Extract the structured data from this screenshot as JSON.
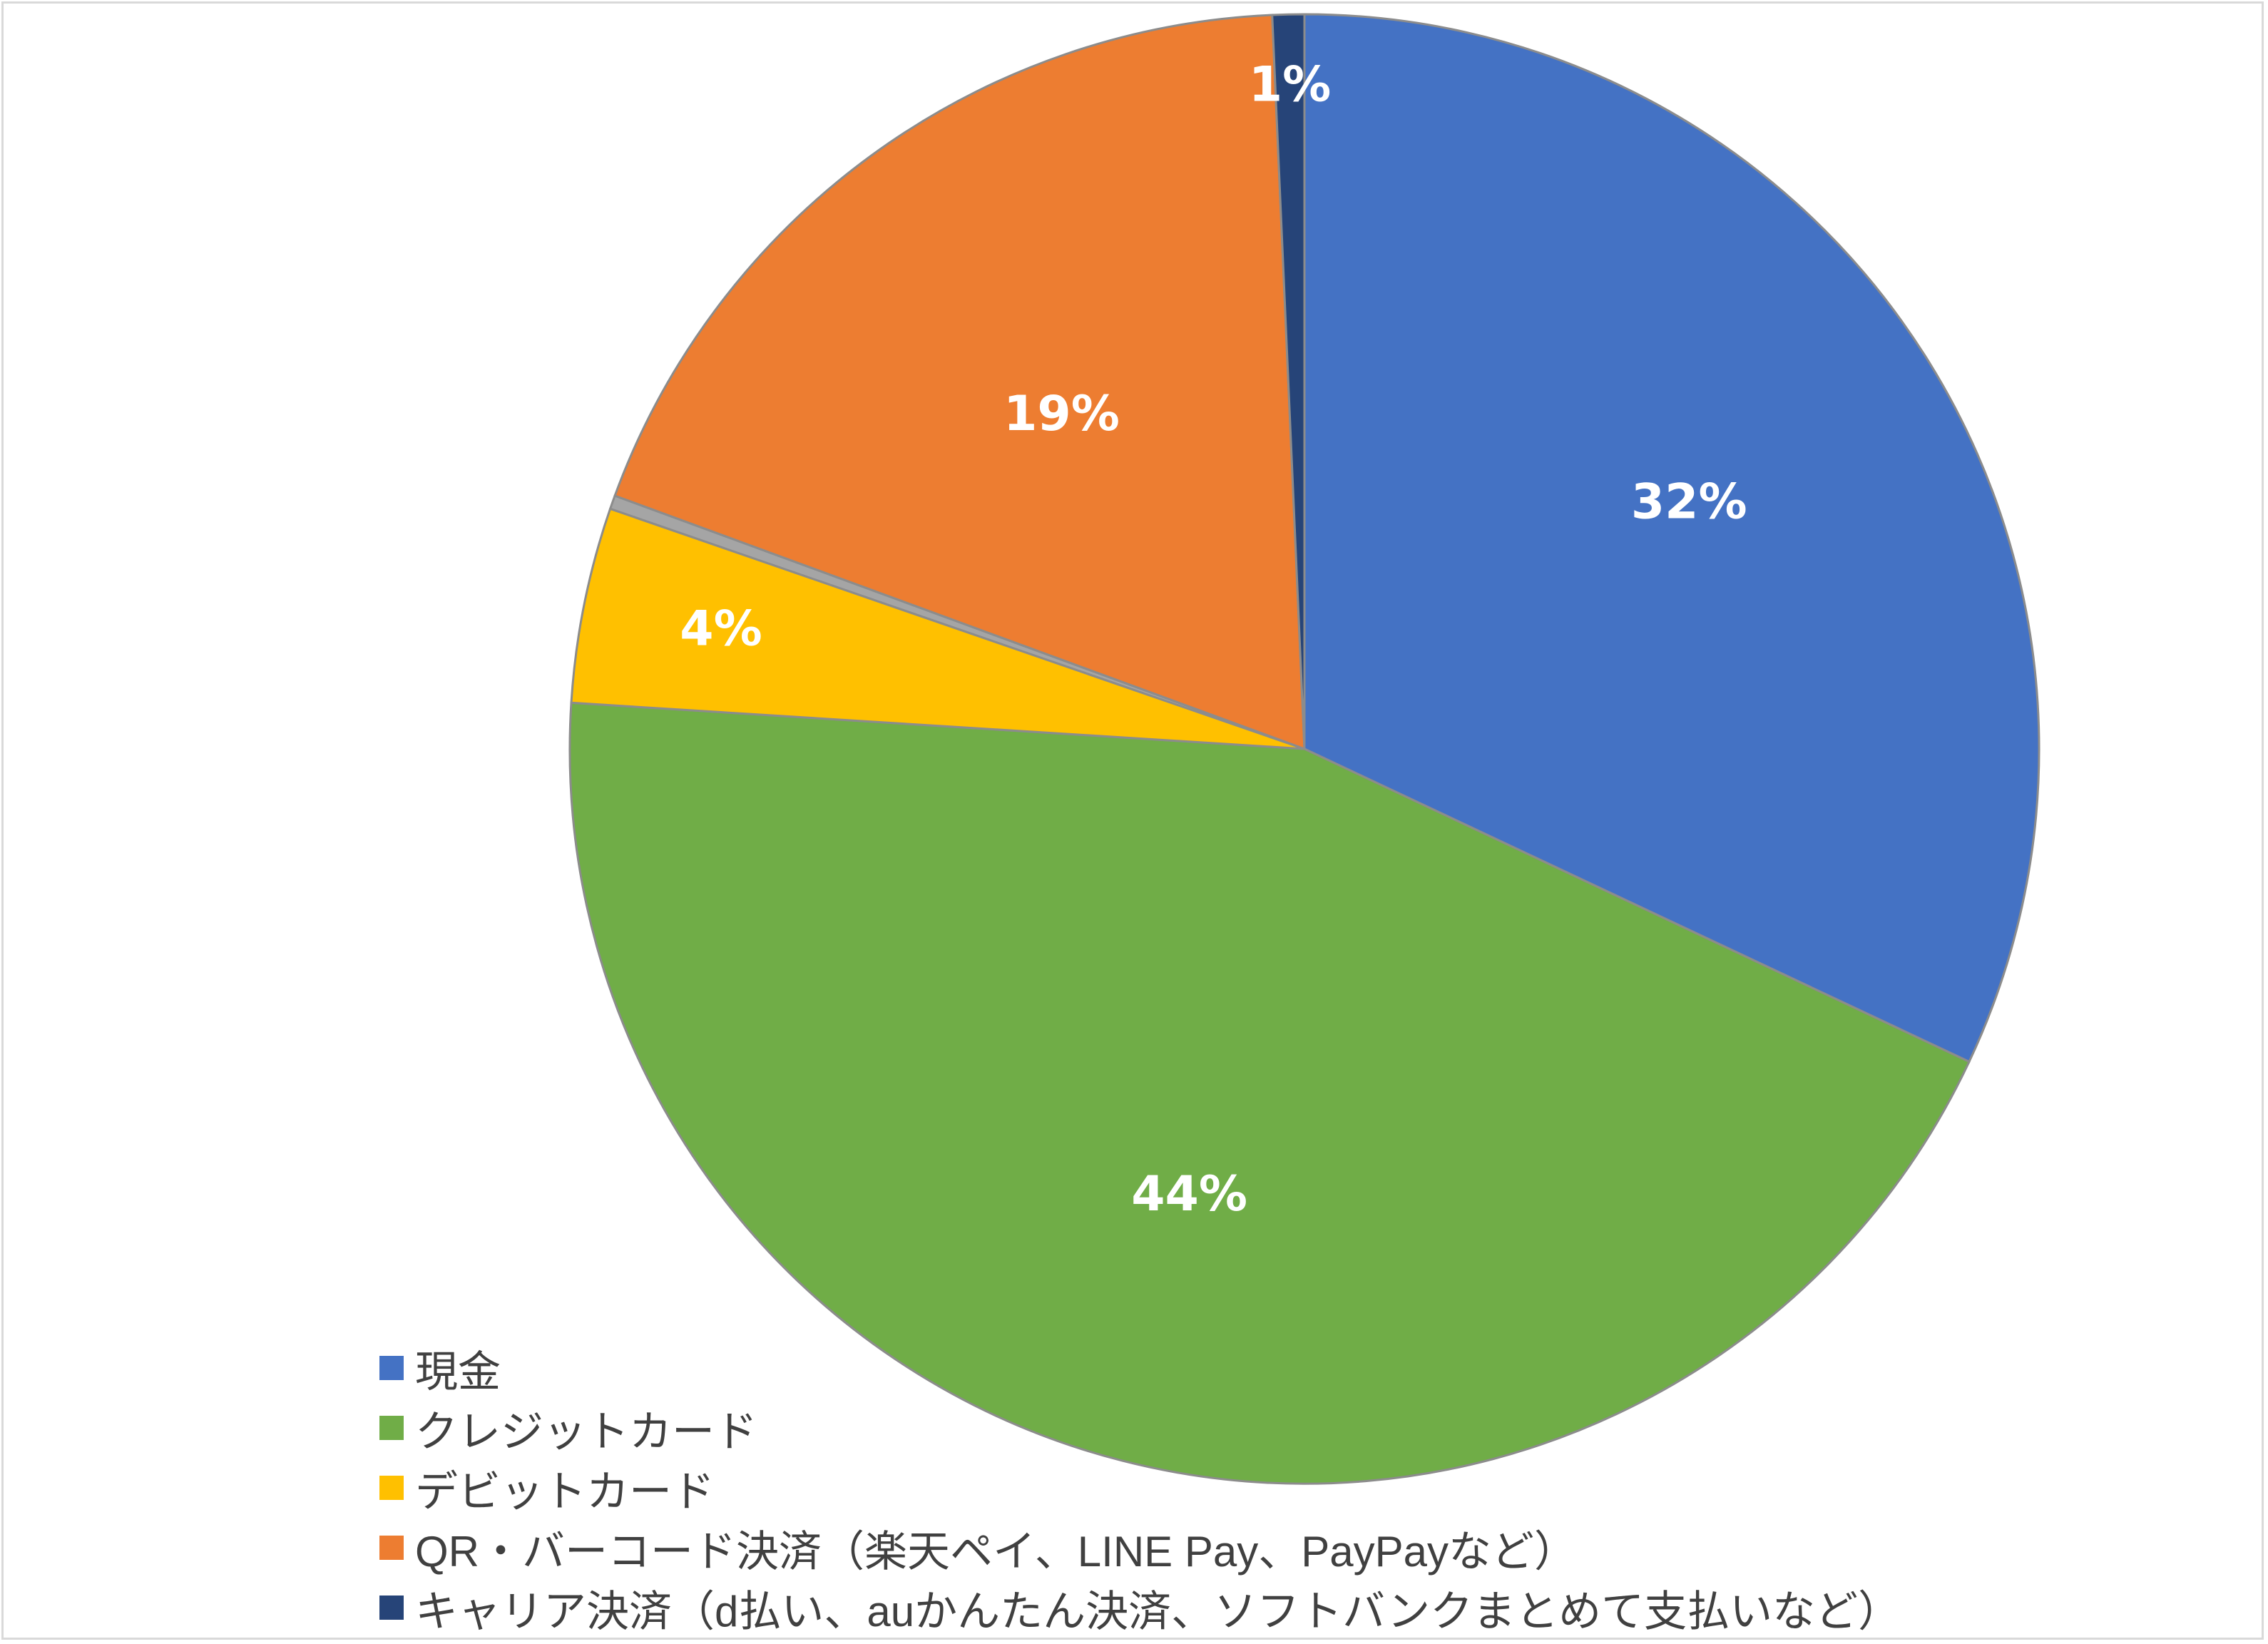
{
  "chart_data": {
    "type": "pie",
    "title": "",
    "start_angle_deg": 0,
    "direction": "clockwise",
    "slices": [
      {
        "label": "現金",
        "value": 32.0,
        "display": "32%",
        "color": "#4472C4"
      },
      {
        "label": "クレジットカード",
        "value": 44.0,
        "display": "44%",
        "color": "#70AD47"
      },
      {
        "label": "デビットカード",
        "value": 4.3,
        "display": "4%",
        "color": "#FFC000"
      },
      {
        "label": "",
        "value": 0.3,
        "display": "",
        "color": "#A5A5A5"
      },
      {
        "label": "QR・バーコード決済（楽天ペイ、LINE Pay、PayPayなど）",
        "value": 18.7,
        "display": "19%",
        "color": "#ED7D31"
      },
      {
        "label": "キャリア決済（d払い、auかんたん決済、ソフトバンクまとめて支払いなど）",
        "value": 0.7,
        "display": "1%",
        "color": "#264478"
      }
    ],
    "legend": {
      "position": "bottom-left",
      "entries": [
        {
          "label": "現金",
          "color": "#4472C4"
        },
        {
          "label": "クレジットカード",
          "color": "#70AD47"
        },
        {
          "label": "デビットカード",
          "color": "#FFC000"
        },
        {
          "label": "QR・バーコード決済（楽天ペイ、LINE Pay、PayPayなど）",
          "color": "#ED7D31"
        },
        {
          "label": "キャリア決済（d払い、auかんたん決済、ソフトバンクまとめて支払いなど）",
          "color": "#264478"
        }
      ]
    }
  }
}
